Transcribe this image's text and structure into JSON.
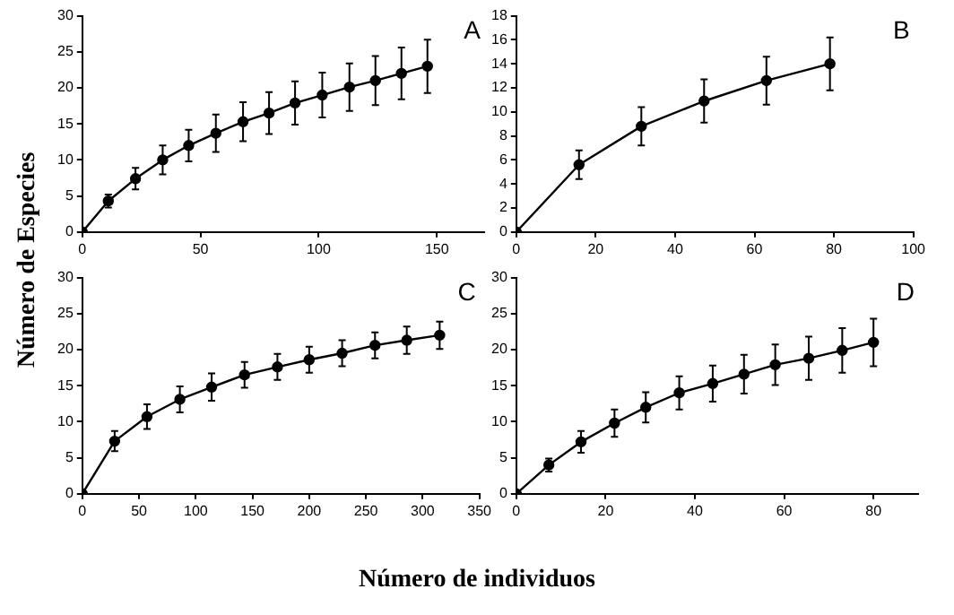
{
  "chart_data": [
    {
      "type": "line",
      "ylabel": "Número de Especies",
      "xlabel": "Número de individuos",
      "annotations": [
        "A"
      ],
      "x": [
        0,
        11,
        22.5,
        34,
        45,
        56.5,
        68,
        79,
        90,
        101.5,
        113,
        124,
        135,
        146
      ],
      "series": [
        {
          "color": "#000000",
          "values": [
            0,
            4.3,
            7.4,
            10,
            12,
            13.7,
            15.3,
            16.5,
            17.9,
            19,
            20.1,
            21,
            22,
            23
          ],
          "errors": [
            null,
            0.9,
            1.5,
            2,
            2.2,
            2.6,
            2.7,
            2.9,
            3,
            3.1,
            3.3,
            3.4,
            3.6,
            3.7
          ]
        }
      ],
      "xlim": [
        0,
        170
      ],
      "xticks": [
        0,
        50,
        100,
        150
      ],
      "ylim": [
        0,
        30
      ],
      "yticks": [
        0,
        5,
        10,
        15,
        20,
        25,
        30
      ],
      "grid": false,
      "legend": false,
      "marker": "circle",
      "line_style": "solid"
    },
    {
      "type": "line",
      "annotations": [
        "B"
      ],
      "x": [
        0,
        15.8,
        31.5,
        47.3,
        63,
        79
      ],
      "series": [
        {
          "color": "#000000",
          "values": [
            0,
            5.6,
            8.8,
            10.9,
            12.6,
            14
          ],
          "errors": [
            null,
            1.2,
            1.6,
            1.8,
            2,
            2.2
          ]
        }
      ],
      "xlim": [
        0,
        100
      ],
      "xticks": [
        0,
        20,
        40,
        60,
        80,
        100
      ],
      "ylim": [
        0,
        18
      ],
      "yticks": [
        0,
        2,
        4,
        6,
        8,
        10,
        12,
        14,
        16,
        18
      ],
      "grid": false,
      "legend": false,
      "marker": "circle",
      "line_style": "solid"
    },
    {
      "type": "line",
      "annotations": [
        "C"
      ],
      "x": [
        0,
        28.5,
        57,
        86,
        114,
        143,
        172,
        200,
        229,
        258,
        286,
        315
      ],
      "series": [
        {
          "color": "#000000",
          "values": [
            0,
            7.3,
            10.7,
            13.1,
            14.8,
            16.5,
            17.6,
            18.6,
            19.5,
            20.6,
            21.3,
            22
          ],
          "errors": [
            null,
            1.4,
            1.7,
            1.8,
            1.9,
            1.8,
            1.8,
            1.8,
            1.8,
            1.8,
            1.9,
            1.9
          ]
        }
      ],
      "xlim": [
        0,
        350
      ],
      "xticks": [
        0,
        50,
        100,
        150,
        200,
        250,
        300,
        350
      ],
      "ylim": [
        0,
        30
      ],
      "yticks": [
        0,
        5,
        10,
        15,
        20,
        25,
        30
      ],
      "grid": false,
      "legend": false,
      "marker": "circle",
      "line_style": "solid"
    },
    {
      "type": "line",
      "annotations": [
        "D"
      ],
      "x": [
        0,
        7.3,
        14.5,
        22,
        29,
        36.5,
        44,
        51,
        58,
        65.5,
        73,
        80
      ],
      "series": [
        {
          "color": "#000000",
          "values": [
            0,
            4,
            7.2,
            9.8,
            12,
            14,
            15.3,
            16.6,
            17.9,
            18.8,
            19.9,
            21
          ],
          "errors": [
            null,
            0.9,
            1.5,
            1.9,
            2.1,
            2.3,
            2.5,
            2.7,
            2.8,
            3,
            3.1,
            3.3
          ]
        }
      ],
      "xlim": [
        0,
        90
      ],
      "xticks": [
        0,
        20,
        40,
        60,
        80
      ],
      "ylim": [
        0,
        30
      ],
      "yticks": [
        0,
        5,
        10,
        15,
        20,
        25,
        30
      ],
      "grid": false,
      "legend": false,
      "marker": "circle",
      "line_style": "solid"
    }
  ]
}
